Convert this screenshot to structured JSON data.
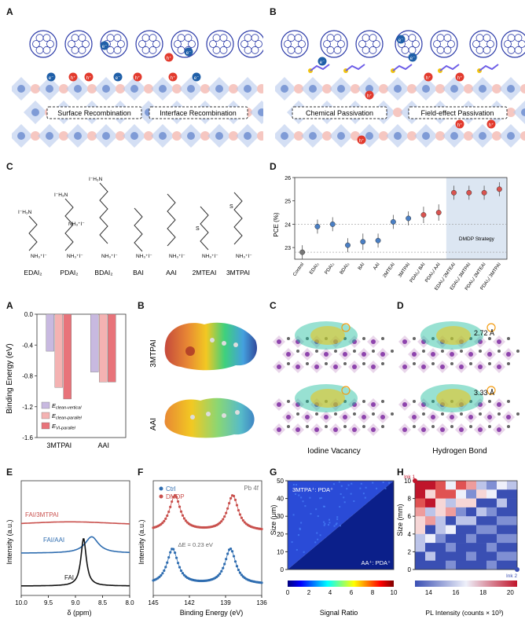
{
  "panel_letters": {
    "top": [
      "A",
      "B",
      "C",
      "D"
    ],
    "bottom": [
      "A",
      "B",
      "C",
      "D",
      "E",
      "F",
      "G",
      "H"
    ]
  },
  "panelA": {
    "boxes": [
      "Surface Recombination",
      "Interface Recombination"
    ],
    "charges": {
      "electron": "e⁻",
      "hole": "h⁺"
    }
  },
  "panelB": {
    "boxes": [
      "Chemical Passivation",
      "Field-effect Passivation"
    ]
  },
  "panelC": {
    "molecules": [
      "EDAI₂",
      "PDAI₂",
      "BDAI₂",
      "BAI",
      "AAI",
      "2MTEAI",
      "3MTPAI"
    ],
    "groups": {
      "top": "I⁻H₃N",
      "ammonium": "NH₃⁺I⁻",
      "S": "S"
    }
  },
  "chart_data": [
    {
      "type": "scatter",
      "panel": "D",
      "ylabel": "PCE (%)",
      "ylim": [
        22.5,
        26.0
      ],
      "yticks": [
        23,
        24,
        25,
        26
      ],
      "categories": [
        "Control",
        "EDAI₂",
        "PDAI₂",
        "BDAI₂",
        "BAI",
        "AAI",
        "2MTEAI",
        "3MTPAI",
        "PDAI₂/ BAI",
        "PDAI₂/ AAI",
        "EDAI₂/ 2MTEAI",
        "EDAI₂/ 3MTPAI",
        "PDAI₂/ 2MTEAI",
        "PDAI₂/ 3MTPAI"
      ],
      "values": [
        22.8,
        23.9,
        24.0,
        23.1,
        23.25,
        23.3,
        24.1,
        24.25,
        24.4,
        24.5,
        25.35,
        25.35,
        25.35,
        25.5
      ],
      "errors": [
        0.3,
        0.3,
        0.3,
        0.3,
        0.35,
        0.3,
        0.3,
        0.3,
        0.35,
        0.35,
        0.3,
        0.3,
        0.3,
        0.3
      ],
      "colors": [
        "#777777",
        "#4a7fc4",
        "#4a7fc4",
        "#4a7fc4",
        "#4a7fc4",
        "#4a7fc4",
        "#4a7fc4",
        "#4a7fc4",
        "#d9534f",
        "#d9534f",
        "#d9534f",
        "#d9534f",
        "#d9534f",
        "#d9534f"
      ],
      "reference_lines": [
        24.0,
        22.8
      ],
      "shade_label": "DMDP Strategy"
    },
    {
      "type": "bar",
      "panel": "A",
      "ylabel": "Binding Energy (eV)",
      "ylim": [
        -1.6,
        0.0
      ],
      "yticks": [
        0.0,
        -0.4,
        -0.8,
        -1.2,
        -1.6
      ],
      "categories": [
        "3MTPAI",
        "AAI"
      ],
      "series": [
        {
          "name": "E_clean-vertical",
          "values": [
            -0.48,
            -0.75
          ],
          "color": "#c8b9e0"
        },
        {
          "name": "E_clean-parallel",
          "values": [
            -0.95,
            -0.88
          ],
          "color": "#f4b2b2"
        },
        {
          "name": "E_VI-parallel",
          "values": [
            -1.1,
            -0.88
          ],
          "color": "#e8737a"
        }
      ],
      "legend_main": "E",
      "legend_subs": [
        "clean-vertical",
        "clean-parallel",
        "VI-parallel"
      ]
    },
    {
      "type": "line",
      "panel": "E",
      "xlabel": "δ (ppm)",
      "ylabel": "Intensity (a.u.)",
      "xlim": [
        10.0,
        8.0
      ],
      "xticks": [
        10.0,
        9.5,
        9.0,
        8.5,
        8.0
      ],
      "series": [
        {
          "name": "FAI/3MTPAI",
          "color": "#c9504d",
          "center": 9.1,
          "width": 1.2,
          "amp": 0.15,
          "offset": 2.0
        },
        {
          "name": "FAI/AAI",
          "color": "#2f6db0",
          "center": 8.7,
          "width": 0.15,
          "amp": 0.55,
          "offset": 1.1
        },
        {
          "name": "FAI",
          "color": "#111111",
          "center": 8.85,
          "width": 0.06,
          "amp": 1.6,
          "offset": 0.0
        }
      ]
    },
    {
      "type": "line",
      "panel": "F",
      "xlabel": "Binding Energy (eV)",
      "ylabel": "Intensity (a.u.)",
      "xlim": [
        145,
        136
      ],
      "xticks": [
        145,
        142,
        139,
        136
      ],
      "annotation": "ΔE = 0.23 eV",
      "corner_label": "Pb 4f",
      "series": [
        {
          "name": "Ctrl",
          "color": "#2f6db0",
          "peaks": [
            143.4,
            138.6
          ]
        },
        {
          "name": "DMDP",
          "color": "#c9504d",
          "peaks": [
            143.2,
            138.4
          ]
        }
      ]
    },
    {
      "type": "heatmap",
      "panel": "G",
      "xlabel": "",
      "ylabel": "Size (μm)",
      "yticks": [
        0,
        10,
        20,
        30,
        40,
        50
      ],
      "colorbar_label": "Signal Ratio",
      "colorbar_ticks": [
        0,
        2,
        4,
        6,
        8,
        10
      ],
      "upper_label": "3MTPA⁺: PDA⁺",
      "lower_label": "AA⁺: PDA⁺"
    },
    {
      "type": "heatmap",
      "panel": "H",
      "ylabel": "Size (mm)",
      "yticks": [
        0,
        2,
        4,
        6,
        8,
        10
      ],
      "colorbar_label": "PL Intensity (counts × 10³)",
      "colorbar_ticks": [
        14,
        16,
        18,
        20
      ],
      "ink_labels": [
        "Ink 1",
        "Ink 2"
      ]
    }
  ],
  "panelB2": {
    "rows": [
      "3MTPAI",
      "AAI"
    ]
  },
  "panelC2": {
    "caption": "Iodine Vacancy"
  },
  "panelD2": {
    "caption": "Hydrogen Bond",
    "distances": [
      "2.72 Å",
      "3.33 Å"
    ]
  },
  "colors": {
    "c60": "#2b3aa8",
    "hole": "#e23a2d",
    "electron": "#1f5fa8",
    "perovskite_pink": "#f6c7c1",
    "perovskite_blue": "#9bb7e6"
  }
}
